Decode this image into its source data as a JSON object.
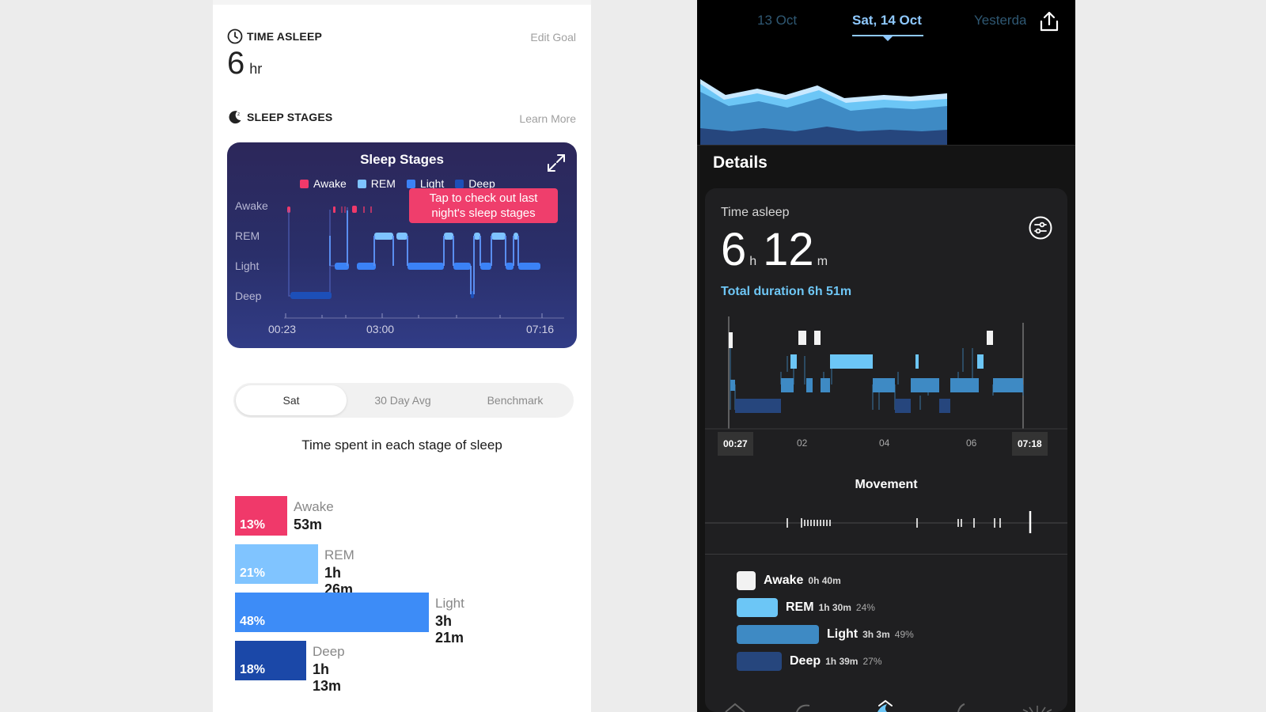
{
  "left": {
    "time_asleep": {
      "title": "TIME ASLEEP",
      "edit_link": "Edit Goal",
      "value": "6",
      "unit": "hr"
    },
    "sleep_stages": {
      "title": "SLEEP STAGES",
      "learn_link": "Learn More",
      "card_title": "Sleep Stages",
      "legend": [
        {
          "label": "Awake",
          "color": "#f0396a"
        },
        {
          "label": "REM",
          "color": "#7ec3ff"
        },
        {
          "label": "Light",
          "color": "#3b82f6"
        },
        {
          "label": "Deep",
          "color": "#1d4fb8"
        }
      ],
      "y_labels": [
        "Awake",
        "REM",
        "Light",
        "Deep"
      ],
      "x_labels": [
        "00:23",
        "03:00",
        "07:16"
      ],
      "tooltip_line1": "Tap to check out last",
      "tooltip_line2": "night's sleep stages"
    },
    "segments": [
      "Sat",
      "30 Day Avg",
      "Benchmark"
    ],
    "active_segment": "Sat",
    "spent_title": "Time spent in each stage of sleep",
    "stage_bars": [
      {
        "name": "Awake",
        "duration": "53m",
        "pct_label": "13%",
        "pct": 13,
        "color": "#f0396a"
      },
      {
        "name": "REM",
        "duration": "1h 26m",
        "pct_label": "21%",
        "pct": 21,
        "color": "#80c4ff"
      },
      {
        "name": "Light",
        "duration": "3h 21m",
        "pct_label": "48%",
        "pct": 48,
        "color": "#3d8cf7"
      },
      {
        "name": "Deep",
        "duration": "1h 13m",
        "pct_label": "18%",
        "pct": 18,
        "color": "#1b48a8"
      }
    ]
  },
  "right": {
    "dates": [
      {
        "label": "13 Oct",
        "state": "faded"
      },
      {
        "label": "Sat, 14 Oct",
        "state": "active"
      },
      {
        "label": "Yesterday",
        "state": "faded"
      }
    ],
    "details_title": "Details",
    "time_asleep_label": "Time asleep",
    "hours": "6",
    "hours_unit": "h",
    "minutes": "12",
    "minutes_unit": "m",
    "total_duration": "Total duration 6h 51m",
    "start_time": "00:27",
    "end_time": "07:18",
    "ticks": [
      "02",
      "04",
      "06"
    ],
    "movement_title": "Movement",
    "legend": [
      {
        "name": "Awake",
        "duration": "0h 40m",
        "pct": "",
        "color": "#f2f2f2",
        "fraction": 0.1
      },
      {
        "name": "REM",
        "duration": "1h 30m",
        "pct": "24%",
        "color": "#6cc6f6",
        "fraction": 0.24
      },
      {
        "name": "Light",
        "duration": "3h 3m",
        "pct": "49%",
        "color": "#3e8ac4",
        "fraction": 0.49
      },
      {
        "name": "Deep",
        "duration": "1h 39m",
        "pct": "27%",
        "color": "#26467d",
        "fraction": 0.27
      }
    ]
  }
}
